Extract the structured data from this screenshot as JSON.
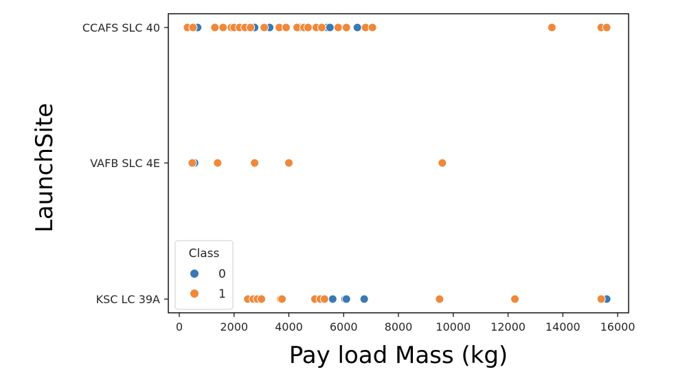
{
  "chart_data": {
    "type": "scatter",
    "xlabel": "Pay load Mass (kg)",
    "ylabel": "LaunchSite",
    "xlim": [
      -400,
      16400
    ],
    "x_ticks": [
      0,
      2000,
      4000,
      6000,
      8000,
      10000,
      12000,
      14000,
      16000
    ],
    "categories": [
      "CCAFS SLC 40",
      "VAFB SLC 4E",
      "KSC LC 39A"
    ],
    "legend": {
      "title": "Class",
      "placement": "lower-left",
      "entries": [
        "0",
        "1"
      ]
    },
    "colors": {
      "0": "#3a78b4",
      "1": "#f0883a"
    },
    "series": [
      {
        "name": "0",
        "points": [
          {
            "x": 670,
            "y": "CCAFS SLC 40"
          },
          {
            "x": 2500,
            "y": "CCAFS SLC 40"
          },
          {
            "x": 2750,
            "y": "CCAFS SLC 40"
          },
          {
            "x": 3300,
            "y": "CCAFS SLC 40"
          },
          {
            "x": 4400,
            "y": "CCAFS SLC 40"
          },
          {
            "x": 5300,
            "y": "CCAFS SLC 40"
          },
          {
            "x": 5400,
            "y": "CCAFS SLC 40"
          },
          {
            "x": 5500,
            "y": "CCAFS SLC 40"
          },
          {
            "x": 6500,
            "y": "CCAFS SLC 40"
          },
          {
            "x": 560,
            "y": "VAFB SLC 4E"
          },
          {
            "x": 5600,
            "y": "KSC LC 39A"
          },
          {
            "x": 6050,
            "y": "KSC LC 39A"
          },
          {
            "x": 6100,
            "y": "KSC LC 39A"
          },
          {
            "x": 6750,
            "y": "KSC LC 39A"
          },
          {
            "x": 15600,
            "y": "KSC LC 39A"
          }
        ]
      },
      {
        "name": "1",
        "points": [
          {
            "x": 300,
            "y": "CCAFS SLC 40"
          },
          {
            "x": 500,
            "y": "CCAFS SLC 40"
          },
          {
            "x": 1300,
            "y": "CCAFS SLC 40"
          },
          {
            "x": 1600,
            "y": "CCAFS SLC 40"
          },
          {
            "x": 1900,
            "y": "CCAFS SLC 40"
          },
          {
            "x": 2000,
            "y": "CCAFS SLC 40"
          },
          {
            "x": 2200,
            "y": "CCAFS SLC 40"
          },
          {
            "x": 2400,
            "y": "CCAFS SLC 40"
          },
          {
            "x": 2600,
            "y": "CCAFS SLC 40"
          },
          {
            "x": 3100,
            "y": "CCAFS SLC 40"
          },
          {
            "x": 3650,
            "y": "CCAFS SLC 40"
          },
          {
            "x": 3900,
            "y": "CCAFS SLC 40"
          },
          {
            "x": 4300,
            "y": "CCAFS SLC 40"
          },
          {
            "x": 4550,
            "y": "CCAFS SLC 40"
          },
          {
            "x": 4700,
            "y": "CCAFS SLC 40"
          },
          {
            "x": 5000,
            "y": "CCAFS SLC 40"
          },
          {
            "x": 5200,
            "y": "CCAFS SLC 40"
          },
          {
            "x": 5800,
            "y": "CCAFS SLC 40"
          },
          {
            "x": 6100,
            "y": "CCAFS SLC 40"
          },
          {
            "x": 6800,
            "y": "CCAFS SLC 40"
          },
          {
            "x": 7050,
            "y": "CCAFS SLC 40"
          },
          {
            "x": 13600,
            "y": "CCAFS SLC 40"
          },
          {
            "x": 15400,
            "y": "CCAFS SLC 40"
          },
          {
            "x": 15600,
            "y": "CCAFS SLC 40"
          },
          {
            "x": 475,
            "y": "VAFB SLC 4E"
          },
          {
            "x": 1400,
            "y": "VAFB SLC 4E"
          },
          {
            "x": 2750,
            "y": "VAFB SLC 4E"
          },
          {
            "x": 4000,
            "y": "VAFB SLC 4E"
          },
          {
            "x": 9600,
            "y": "VAFB SLC 4E"
          },
          {
            "x": 2500,
            "y": "KSC LC 39A"
          },
          {
            "x": 2700,
            "y": "KSC LC 39A"
          },
          {
            "x": 2850,
            "y": "KSC LC 39A"
          },
          {
            "x": 3000,
            "y": "KSC LC 39A"
          },
          {
            "x": 3700,
            "y": "KSC LC 39A"
          },
          {
            "x": 3750,
            "y": "KSC LC 39A"
          },
          {
            "x": 4950,
            "y": "KSC LC 39A"
          },
          {
            "x": 5150,
            "y": "KSC LC 39A"
          },
          {
            "x": 5300,
            "y": "KSC LC 39A"
          },
          {
            "x": 9500,
            "y": "KSC LC 39A"
          },
          {
            "x": 12250,
            "y": "KSC LC 39A"
          },
          {
            "x": 15400,
            "y": "KSC LC 39A"
          }
        ]
      }
    ]
  }
}
